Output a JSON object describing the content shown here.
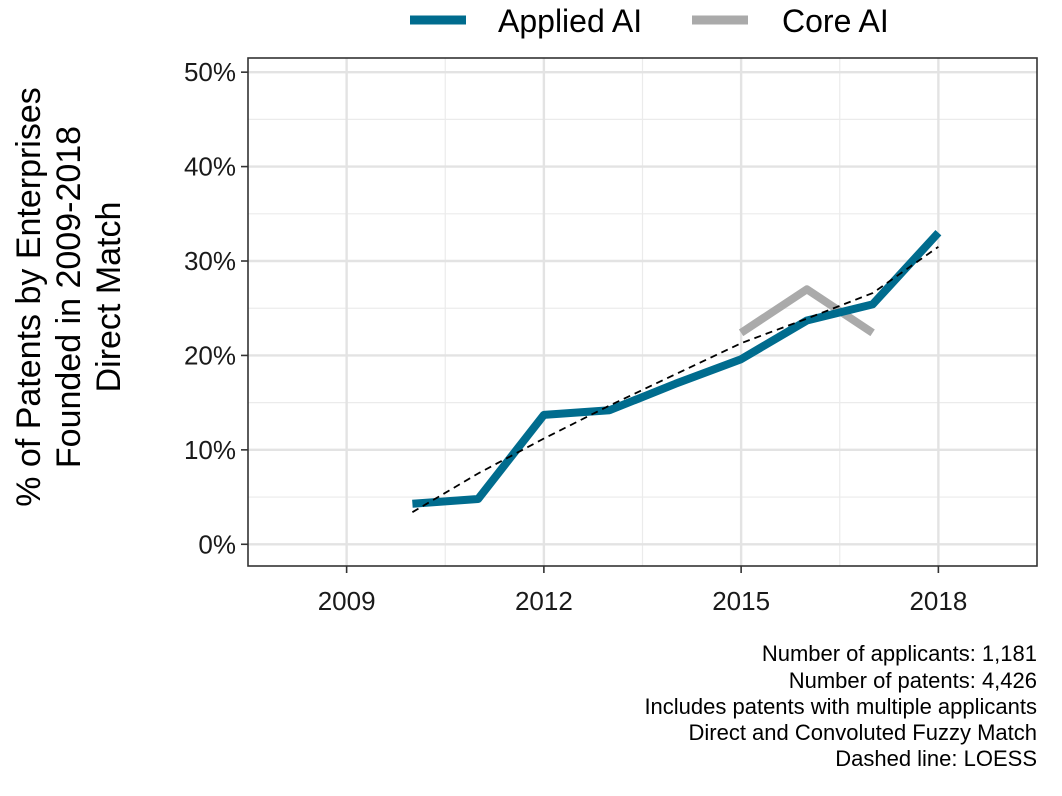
{
  "chart_data": {
    "type": "line",
    "xlabel": "",
    "ylabel": [
      "% of Patents by Enterprises",
      "Founded in 2009-2018",
      "Direct Match"
    ],
    "xlim": [
      2007.5,
      2019.5
    ],
    "ylim": [
      -2.3,
      51.5
    ],
    "x_ticks": [
      2009,
      2012,
      2015,
      2018
    ],
    "y_ticks": [
      0,
      10,
      20,
      30,
      40,
      50
    ],
    "y_tick_labels": [
      "0%",
      "10%",
      "20%",
      "30%",
      "40%",
      "50%"
    ],
    "grid": true,
    "legend_position": "top",
    "series": [
      {
        "name": "Applied AI",
        "color": "#006c8e",
        "x": [
          2010,
          2011,
          2012,
          2013,
          2014,
          2015,
          2016,
          2017,
          2018
        ],
        "y": [
          4.3,
          4.8,
          13.7,
          14.2,
          17.0,
          19.6,
          23.7,
          25.4,
          33.0
        ]
      },
      {
        "name": "Core AI",
        "color": "#aaaaaa",
        "x": [
          2015,
          2016,
          2017
        ],
        "y": [
          22.4,
          27.0,
          22.4
        ]
      }
    ],
    "trend": {
      "style": "dashed",
      "color": "#000000",
      "x": [
        2010,
        2011,
        2012,
        2013,
        2014,
        2015,
        2016,
        2017,
        2018
      ],
      "y": [
        3.4,
        7.5,
        11.2,
        14.7,
        18.0,
        21.3,
        23.9,
        26.6,
        31.5
      ]
    },
    "captions": [
      "Number of applicants: 1,181",
      "Number of patents: 4,426",
      "Includes patents with multiple applicants",
      "Direct and Convoluted Fuzzy Match",
      "Dashed line: LOESS"
    ]
  }
}
